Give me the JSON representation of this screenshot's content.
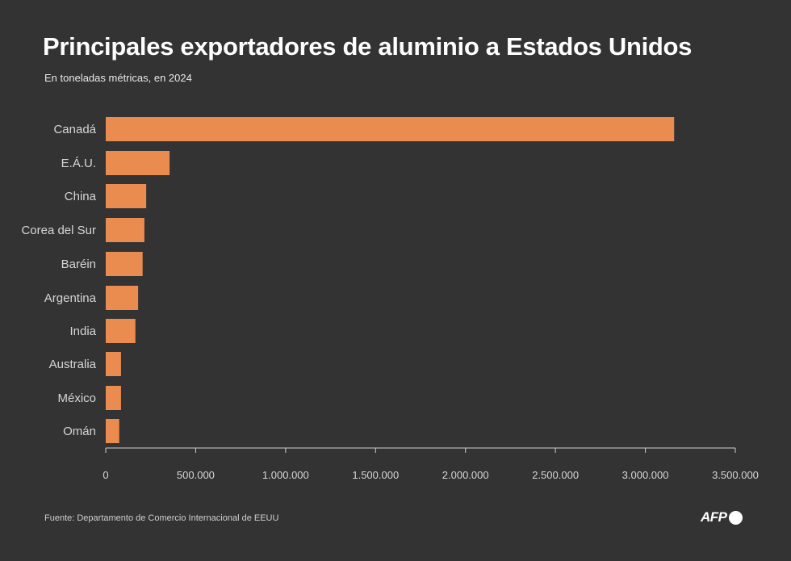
{
  "header": {
    "title": "Principales exportadores de aluminio a Estados Unidos",
    "subtitle": "En toneladas métricas, en 2024"
  },
  "footer": {
    "source": "Fuente: Departamento de Comercio Internacional de EEUU",
    "logo_text": "AFP"
  },
  "colors": {
    "background": "#333333",
    "bar": "#ea8b4f",
    "axis": "#d0d0d0"
  },
  "chart_data": {
    "type": "bar",
    "orientation": "horizontal",
    "title": "Principales exportadores de aluminio a Estados Unidos",
    "subtitle": "En toneladas métricas, en 2024",
    "xlabel": "",
    "ylabel": "",
    "categories": [
      "Canadá",
      "E.Á.U.",
      "China",
      "Corea del Sur",
      "Baréin",
      "Argentina",
      "India",
      "Australia",
      "México",
      "Omán"
    ],
    "values": [
      3160000,
      355000,
      225000,
      215000,
      205000,
      180000,
      165000,
      85000,
      85000,
      75000
    ],
    "xlim": [
      0,
      3500000
    ],
    "ticks": [
      0,
      500000,
      1000000,
      1500000,
      2000000,
      2500000,
      3000000,
      3500000
    ],
    "tick_labels": [
      "0",
      "500.000",
      "1.000.000",
      "1.500.000",
      "2.000.000",
      "2.500.000",
      "3.000.000",
      "3.500.000"
    ],
    "grid": false,
    "legend": "none"
  }
}
